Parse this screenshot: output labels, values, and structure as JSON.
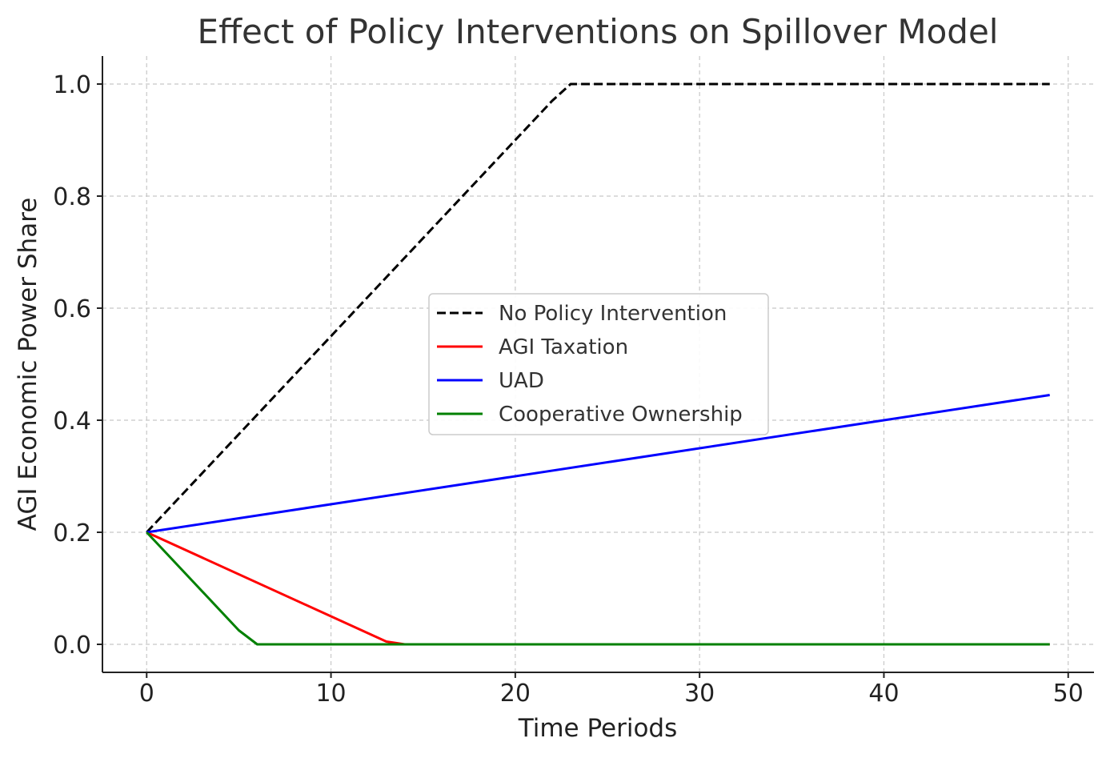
{
  "chart_data": {
    "type": "line",
    "title": "Effect of Policy Interventions on Spillover Model",
    "xlabel": "Time Periods",
    "ylabel": "AGI Economic Power Share",
    "xlim": [
      -2.4,
      51.4
    ],
    "ylim": [
      -0.05,
      1.05
    ],
    "xticks": [
      0,
      10,
      20,
      30,
      40,
      50
    ],
    "xtick_labels": [
      "0",
      "10",
      "20",
      "30",
      "40",
      "50"
    ],
    "yticks": [
      0.0,
      0.2,
      0.4,
      0.6,
      0.8,
      1.0
    ],
    "ytick_labels": [
      "0.0",
      "0.2",
      "0.4",
      "0.6",
      "0.8",
      "1.0"
    ],
    "grid": true,
    "legend_position": "center",
    "series": [
      {
        "name": "No Policy Intervention",
        "color": "#000000",
        "style": "dashed",
        "x": [
          0,
          22,
          23,
          49
        ],
        "y": [
          0.2,
          0.97,
          1.0,
          1.0
        ]
      },
      {
        "name": "AGI Taxation",
        "color": "#ff0000",
        "style": "solid",
        "x": [
          0,
          13,
          14,
          49
        ],
        "y": [
          0.2,
          0.005,
          0.0,
          0.0
        ]
      },
      {
        "name": "UAD",
        "color": "#0000ff",
        "style": "solid",
        "x": [
          0,
          49
        ],
        "y": [
          0.2,
          0.445
        ]
      },
      {
        "name": "Cooperative Ownership",
        "color": "#008000",
        "style": "solid",
        "x": [
          0,
          5,
          6,
          49
        ],
        "y": [
          0.2,
          0.025,
          0.0,
          0.0
        ]
      }
    ]
  }
}
